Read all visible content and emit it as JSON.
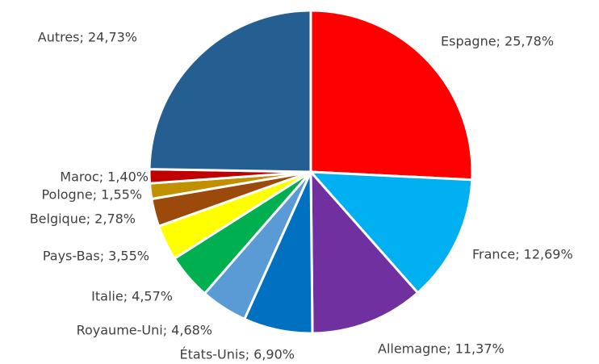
{
  "chart_data": {
    "type": "pie",
    "values": [
      25.78,
      12.69,
      11.37,
      6.9,
      4.68,
      4.57,
      3.55,
      2.78,
      1.55,
      1.4,
      24.73
    ],
    "value_labels": [
      "Espagne; 25,78%",
      "France; 12,69%",
      "Allemagne; 11,37%",
      "États-Unis; 6,90%",
      "Royaume-Uni; 4,68%",
      "Italie; 4,57%",
      "Pays-Bas; 3,55%",
      "Belgique; 2,78%",
      "Pologne; 1,55%",
      "Maroc; 1,40%",
      "Autres; 24,73%"
    ],
    "colors": [
      "#ff0000",
      "#00b0f0",
      "#7030a0",
      "#0070c0",
      "#5b9bd5",
      "#00b050",
      "#ffff00",
      "#9c4a0c",
      "#c09000",
      "#c00000",
      "#255e91"
    ]
  }
}
